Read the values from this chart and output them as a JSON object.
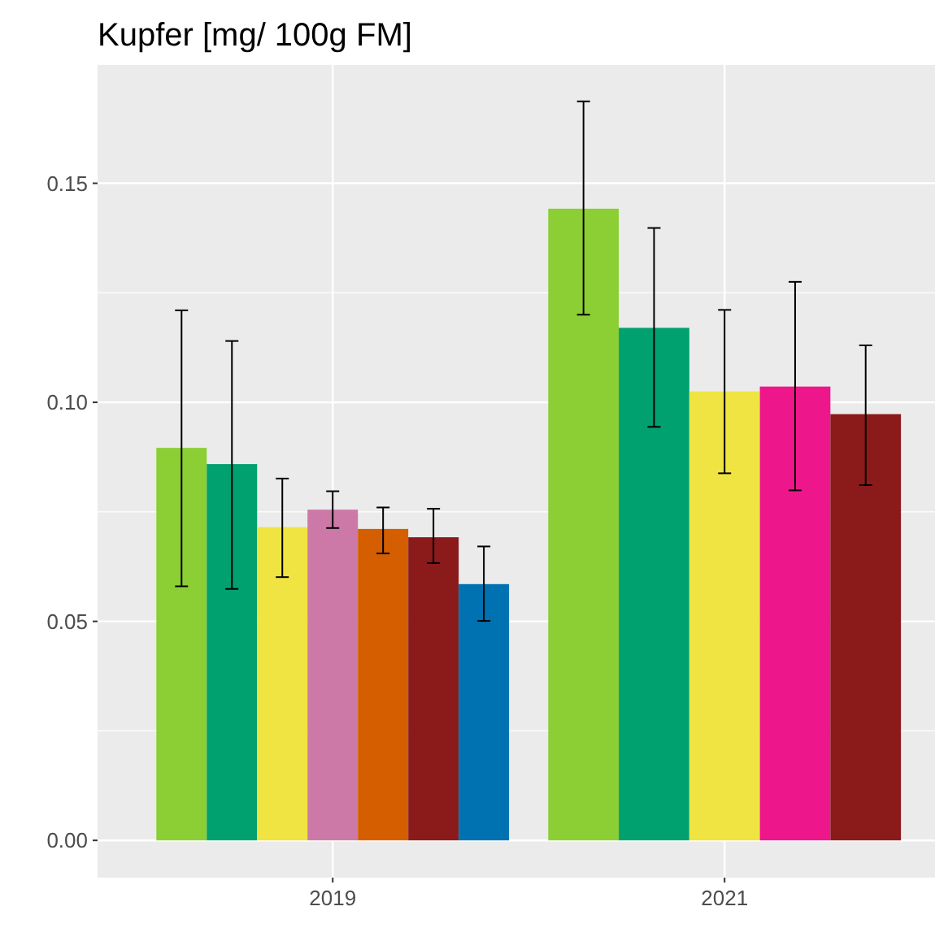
{
  "chart_data": {
    "type": "bar",
    "title": "Kupfer [mg/ 100g FM]",
    "categories": [
      "2019",
      "2021"
    ],
    "series": [
      {
        "color": "#8bcf35",
        "values": [
          0.0896,
          0.1442
        ],
        "errors": [
          [
            0.058,
            0.121
          ],
          [
            0.12,
            0.1687
          ]
        ]
      },
      {
        "color": "#00a06f",
        "values": [
          0.0859,
          0.117
        ],
        "errors": [
          [
            0.0574,
            0.114
          ],
          [
            0.0944,
            0.1398
          ]
        ]
      },
      {
        "color": "#f0e442",
        "values": [
          0.0715,
          0.1025
        ],
        "errors": [
          [
            0.0601,
            0.0826
          ],
          [
            0.0838,
            0.1211
          ]
        ]
      },
      {
        "color": "#cc79a7",
        "values": [
          0.0755,
          null
        ],
        "errors": [
          [
            0.0713,
            0.0797
          ],
          null
        ]
      },
      {
        "color": "#d55e00",
        "values": [
          0.0711,
          null
        ],
        "errors": [
          [
            0.0655,
            0.076
          ],
          null
        ]
      },
      {
        "color": "#ee168b",
        "values": [
          null,
          0.1036
        ],
        "errors": [
          null,
          [
            0.0799,
            0.1275
          ]
        ]
      },
      {
        "color": "#8b1a1a",
        "values": [
          0.0692,
          0.0973
        ],
        "errors": [
          [
            0.0633,
            0.0757
          ],
          [
            0.0811,
            0.113
          ]
        ]
      },
      {
        "color": "#0072b2",
        "values": [
          0.0585,
          null
        ],
        "errors": [
          [
            0.0501,
            0.0671
          ],
          null
        ]
      }
    ],
    "ylim": [
      -0.0085,
      0.177
    ],
    "yticks": [
      {
        "value": 0,
        "label": "0.00"
      },
      {
        "value": 0.05,
        "label": "0.05"
      },
      {
        "value": 0.1,
        "label": "0.10"
      },
      {
        "value": 0.15,
        "label": "0.15"
      }
    ],
    "grid": true
  }
}
